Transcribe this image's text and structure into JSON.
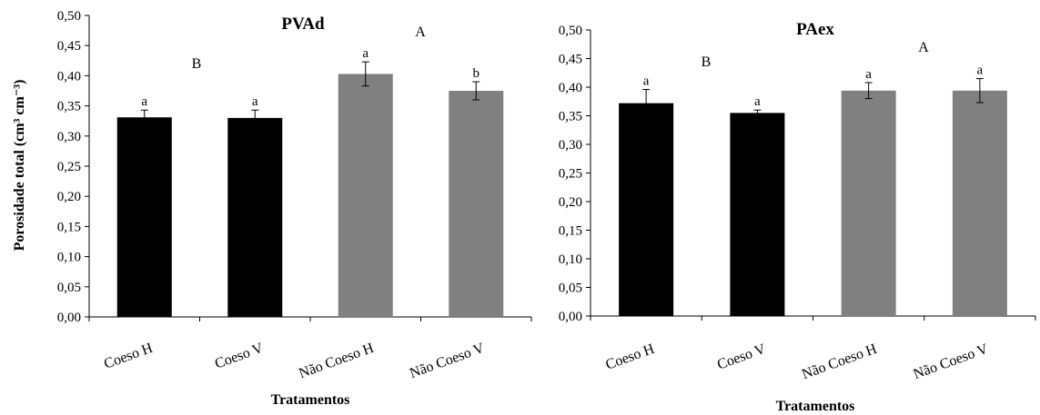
{
  "colors": {
    "coeso": "#000000",
    "nao_coeso": "#808080"
  },
  "y_axis_title": "Porosidade total (cm³ cm⁻³)",
  "chart_data": [
    {
      "type": "bar",
      "title": "PVAd",
      "xlabel": "Tratamentos",
      "ylabel": "Porosidade total (cm³ cm⁻³)",
      "categories": [
        "Coeso H",
        "Coeso V",
        "Não Coeso H",
        "Não Coeso V"
      ],
      "values": [
        0.331,
        0.33,
        0.403,
        0.375
      ],
      "errors": [
        0.012,
        0.013,
        0.02,
        0.015
      ],
      "letters": [
        "a",
        "a",
        "a",
        "b"
      ],
      "group_letters": [
        "B",
        "A"
      ],
      "colors": [
        "#000000",
        "#000000",
        "#808080",
        "#808080"
      ],
      "ylim": [
        0,
        0.5
      ],
      "yticks": [
        "0,00",
        "0,05",
        "0,10",
        "0,15",
        "0,20",
        "0,25",
        "0,30",
        "0,35",
        "0,40",
        "0,45",
        "0,50"
      ],
      "grid": false
    },
    {
      "type": "bar",
      "title": "PAex",
      "xlabel": "Tratamentos",
      "ylabel": "",
      "categories": [
        "Coeso H",
        "Coeso V",
        "Não Coeso H",
        "Não Coeso V"
      ],
      "values": [
        0.372,
        0.355,
        0.394,
        0.394
      ],
      "errors": [
        0.024,
        0.005,
        0.014,
        0.021
      ],
      "letters": [
        "a",
        "a",
        "a",
        "a"
      ],
      "group_letters": [
        "B",
        "A"
      ],
      "colors": [
        "#000000",
        "#000000",
        "#808080",
        "#808080"
      ],
      "ylim": [
        0,
        0.5
      ],
      "yticks": [
        "0,00",
        "0,05",
        "0,10",
        "0,15",
        "0,20",
        "0,25",
        "0,30",
        "0,35",
        "0,40",
        "0,45",
        "0,50"
      ],
      "grid": false
    }
  ]
}
